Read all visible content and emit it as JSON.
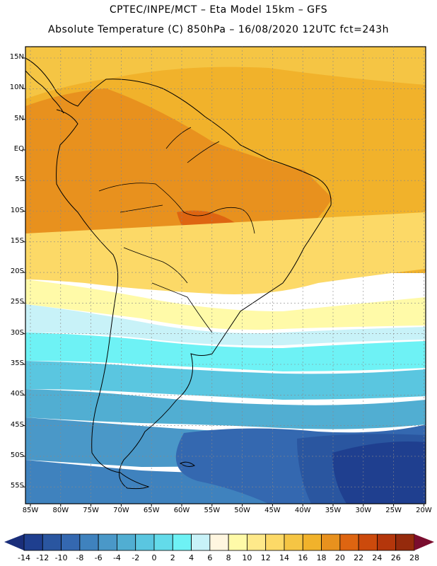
{
  "header": {
    "title_line1": "CPTEC/INPE/MCT –  Eta Model 15km – GFS",
    "title_line2": "Absolute Temperature (C) 850hPa – 16/08/2020 12UTC fct=243h"
  },
  "lat_labels": [
    "15N",
    "10N",
    "5N",
    "EQ",
    "5S",
    "10S",
    "15S",
    "20S",
    "25S",
    "30S",
    "35S",
    "40S",
    "45S",
    "50S",
    "55S"
  ],
  "lon_labels": [
    "85W",
    "80W",
    "75W",
    "70W",
    "65W",
    "60W",
    "55W",
    "50W",
    "45W",
    "40W",
    "35W",
    "30W",
    "25W",
    "20W"
  ],
  "colorbar": {
    "labels": [
      "-14",
      "-12",
      "-10",
      "-8",
      "-6",
      "-4",
      "-2",
      "0",
      "2",
      "4",
      "6",
      "8",
      "10",
      "12",
      "14",
      "16",
      "18",
      "20",
      "22",
      "24",
      "26",
      "28"
    ],
    "colors": [
      "#1f3f8f",
      "#2a56a0",
      "#3468b0",
      "#3f82be",
      "#4a98c8",
      "#51aed2",
      "#5ac6e0",
      "#63dbea",
      "#6ef2f5",
      "#c8f2f8",
      "#fff6e0",
      "#fffaa8",
      "#fee98a",
      "#fcd967",
      "#f5c544",
      "#f1b22b",
      "#e8911e",
      "#de6511",
      "#cc4a0c",
      "#b4360b",
      "#952a0c"
    ],
    "under_color": "#1a2e7a",
    "over_color": "#7a0d2e"
  }
}
